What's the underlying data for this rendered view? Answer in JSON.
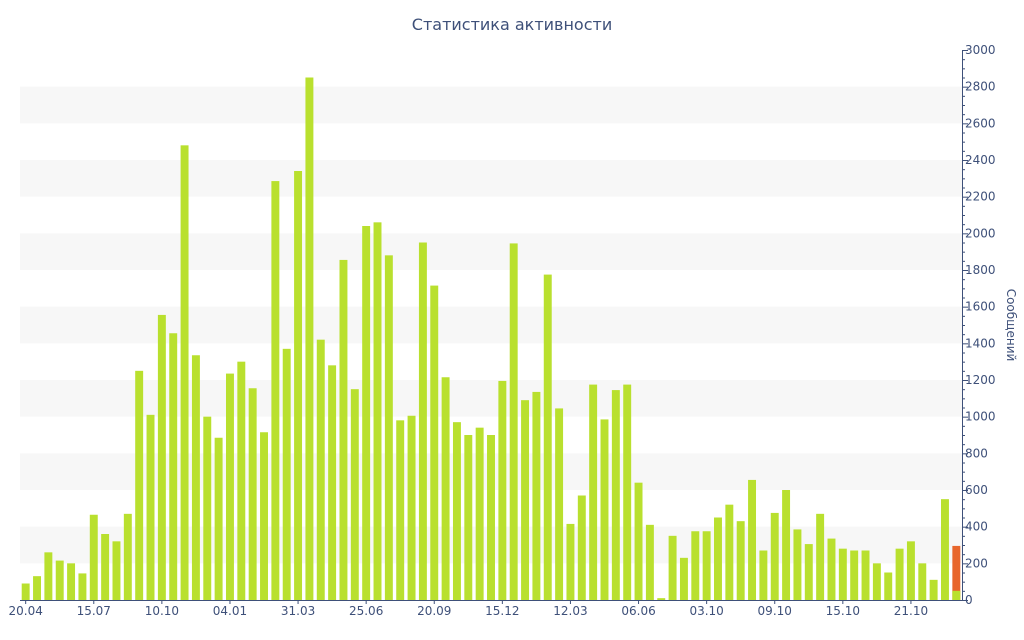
{
  "chart_data": {
    "type": "bar",
    "title": "Статистика активности",
    "ylabel": "Сообщений",
    "xlabel": "",
    "ylim": [
      0,
      3000
    ],
    "yticks": [
      0,
      200,
      400,
      600,
      800,
      1000,
      1200,
      1400,
      1600,
      1800,
      2000,
      2200,
      2400,
      2600,
      2800,
      3000
    ],
    "y_axis_side": "right",
    "grid": "alternating horizontal bands",
    "xtick_labels": [
      "20.04",
      "15.07",
      "10.10",
      "04.01",
      "31.03",
      "25.06",
      "20.09",
      "15.12",
      "12.03",
      "06.06",
      "03.10",
      "09.10",
      "15.10",
      "21.10"
    ],
    "xtick_label_bar_index": [
      0,
      6,
      12,
      18,
      24,
      30,
      36,
      42,
      48,
      54,
      60,
      66,
      72,
      78
    ],
    "values": [
      90,
      130,
      260,
      215,
      200,
      145,
      465,
      360,
      320,
      470,
      1250,
      1010,
      1555,
      1455,
      2480,
      1335,
      1000,
      885,
      1235,
      1300,
      1155,
      915,
      2285,
      1370,
      2340,
      2850,
      1420,
      1280,
      1855,
      1150,
      2040,
      2060,
      1880,
      980,
      1005,
      1950,
      1715,
      1215,
      970,
      900,
      940,
      900,
      1195,
      1945,
      1090,
      1135,
      1775,
      1045,
      415,
      570,
      1175,
      985,
      1145,
      1175,
      640,
      410,
      10,
      350,
      230,
      375,
      375,
      450,
      520,
      430,
      655,
      270,
      475,
      600,
      385,
      305,
      470,
      335,
      280,
      270,
      270,
      200,
      150,
      280,
      320,
      200,
      110,
      550,
      295
    ],
    "highlight": {
      "index": 82,
      "color": "#e8662c",
      "lower_value": 50,
      "lower_color": "#b9e02e"
    },
    "colors": {
      "bar": "#b9e02e",
      "highlight": "#e8662c",
      "axis_text": "#3e5079",
      "band": "#f7f7f7"
    }
  }
}
